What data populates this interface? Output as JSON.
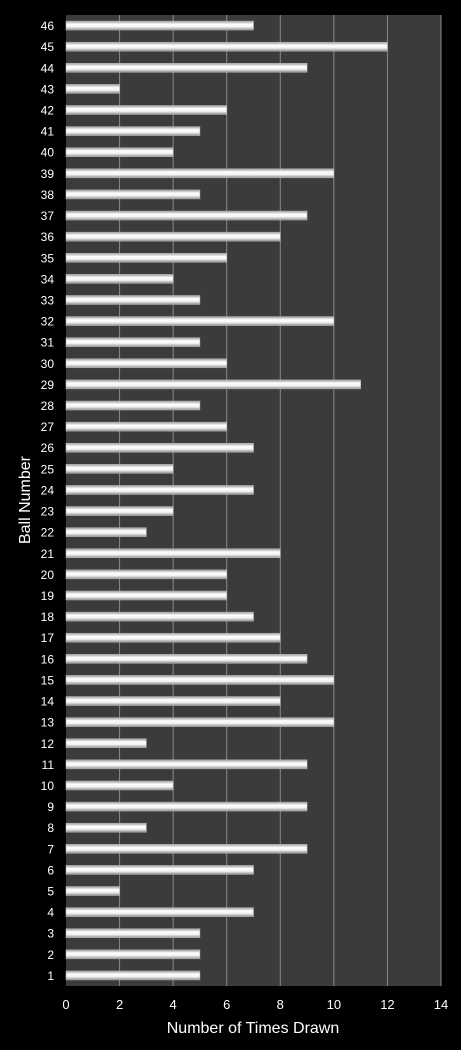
{
  "chart_data": {
    "type": "bar",
    "orientation": "horizontal",
    "title": "",
    "xlabel": "Number of Times Drawn",
    "ylabel": "Ball Number",
    "xlim": [
      0,
      14
    ],
    "xticks": [
      0,
      2,
      4,
      6,
      8,
      10,
      12,
      14
    ],
    "grid": true,
    "legend": "none",
    "categories": [
      "1",
      "2",
      "3",
      "4",
      "5",
      "6",
      "7",
      "8",
      "9",
      "10",
      "11",
      "12",
      "13",
      "14",
      "15",
      "16",
      "17",
      "18",
      "19",
      "20",
      "21",
      "22",
      "23",
      "24",
      "25",
      "26",
      "27",
      "28",
      "29",
      "30",
      "31",
      "32",
      "33",
      "34",
      "35",
      "36",
      "37",
      "38",
      "39",
      "40",
      "41",
      "42",
      "43",
      "44",
      "45",
      "46"
    ],
    "values": [
      5,
      5,
      5,
      7,
      2,
      7,
      9,
      3,
      9,
      4,
      9,
      3,
      10,
      8,
      10,
      9,
      8,
      7,
      6,
      6,
      8,
      3,
      4,
      7,
      4,
      7,
      6,
      5,
      11,
      6,
      5,
      10,
      5,
      4,
      6,
      8,
      9,
      5,
      10,
      4,
      5,
      6,
      2,
      9,
      12,
      7
    ],
    "colors": {
      "page_background": "#000000",
      "plot_background": "#3b3b3b",
      "gridline": "#8a8a8a",
      "bar_fill": "#e6e6e6",
      "text": "#ffffff"
    }
  }
}
